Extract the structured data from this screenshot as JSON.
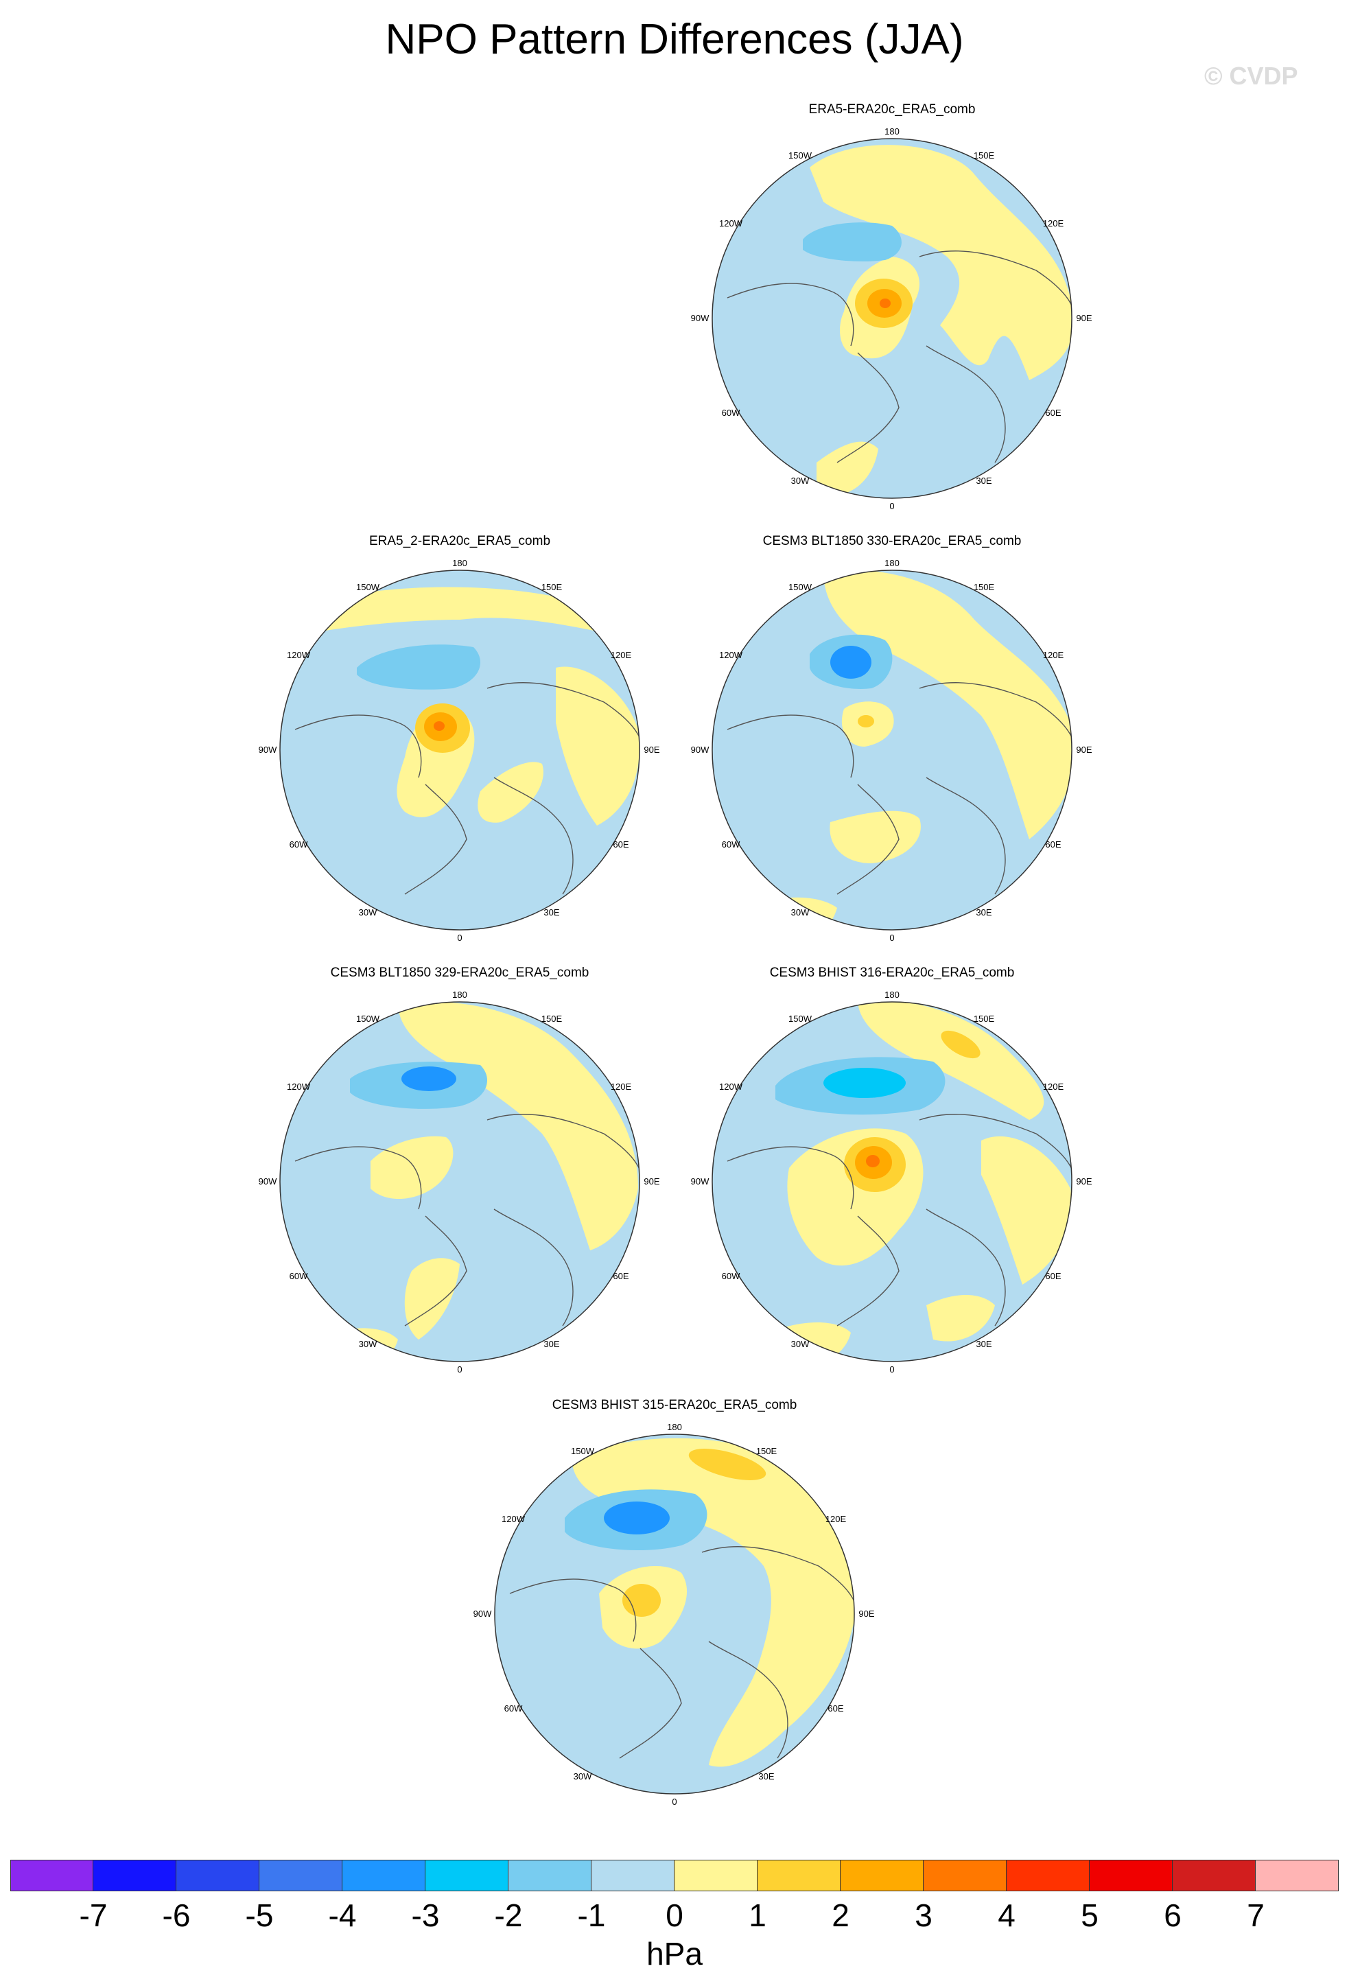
{
  "figure": {
    "title": "NPO Pattern Differences (JJA)",
    "watermark": "© CVDP"
  },
  "map_labels": {
    "top": "180",
    "upper_left": "150W",
    "upper_right": "150E",
    "left_upper": "120W",
    "right_upper": "120E",
    "left": "90W",
    "right": "90E",
    "left_lower": "60W",
    "right_lower": "60E",
    "lower_left": "30W",
    "lower_right": "30E",
    "bottom": "0"
  },
  "panels": [
    {
      "title": "ERA5-ERA20c_ERA5_comb",
      "max_positive_hPa": 3,
      "min_negative_hPa": -2
    },
    {
      "title": "ERA5_2-ERA20c_ERA5_comb",
      "max_positive_hPa": 3,
      "min_negative_hPa": -2
    },
    {
      "title": "CESM3 BLT1850 330-ERA20c_ERA5_comb",
      "max_positive_hPa": 2,
      "min_negative_hPa": -3
    },
    {
      "title": "CESM3 BLT1850 329-ERA20c_ERA5_comb",
      "max_positive_hPa": 1,
      "min_negative_hPa": -3
    },
    {
      "title": "CESM3 BHIST 316-ERA20c_ERA5_comb",
      "max_positive_hPa": 3,
      "min_negative_hPa": -3
    },
    {
      "title": "CESM3 BHIST 315-ERA20c_ERA5_comb",
      "max_positive_hPa": 2,
      "min_negative_hPa": -3
    }
  ],
  "colorbar": {
    "units": "hPa",
    "tick_labels": [
      "-7",
      "-6",
      "-5",
      "-4",
      "-3",
      "-2",
      "-1",
      "0",
      "1",
      "2",
      "3",
      "4",
      "5",
      "6",
      "7"
    ],
    "colors": [
      "#8b28f0",
      "#1414ff",
      "#2846f0",
      "#3c78f0",
      "#1e96ff",
      "#00c8f8",
      "#78ccf0",
      "#b4dcf0",
      "#fff696",
      "#fed232",
      "#ffaa00",
      "#ff7800",
      "#ff3200",
      "#f00000",
      "#d21e1e",
      "#ffb4b4"
    ]
  }
}
